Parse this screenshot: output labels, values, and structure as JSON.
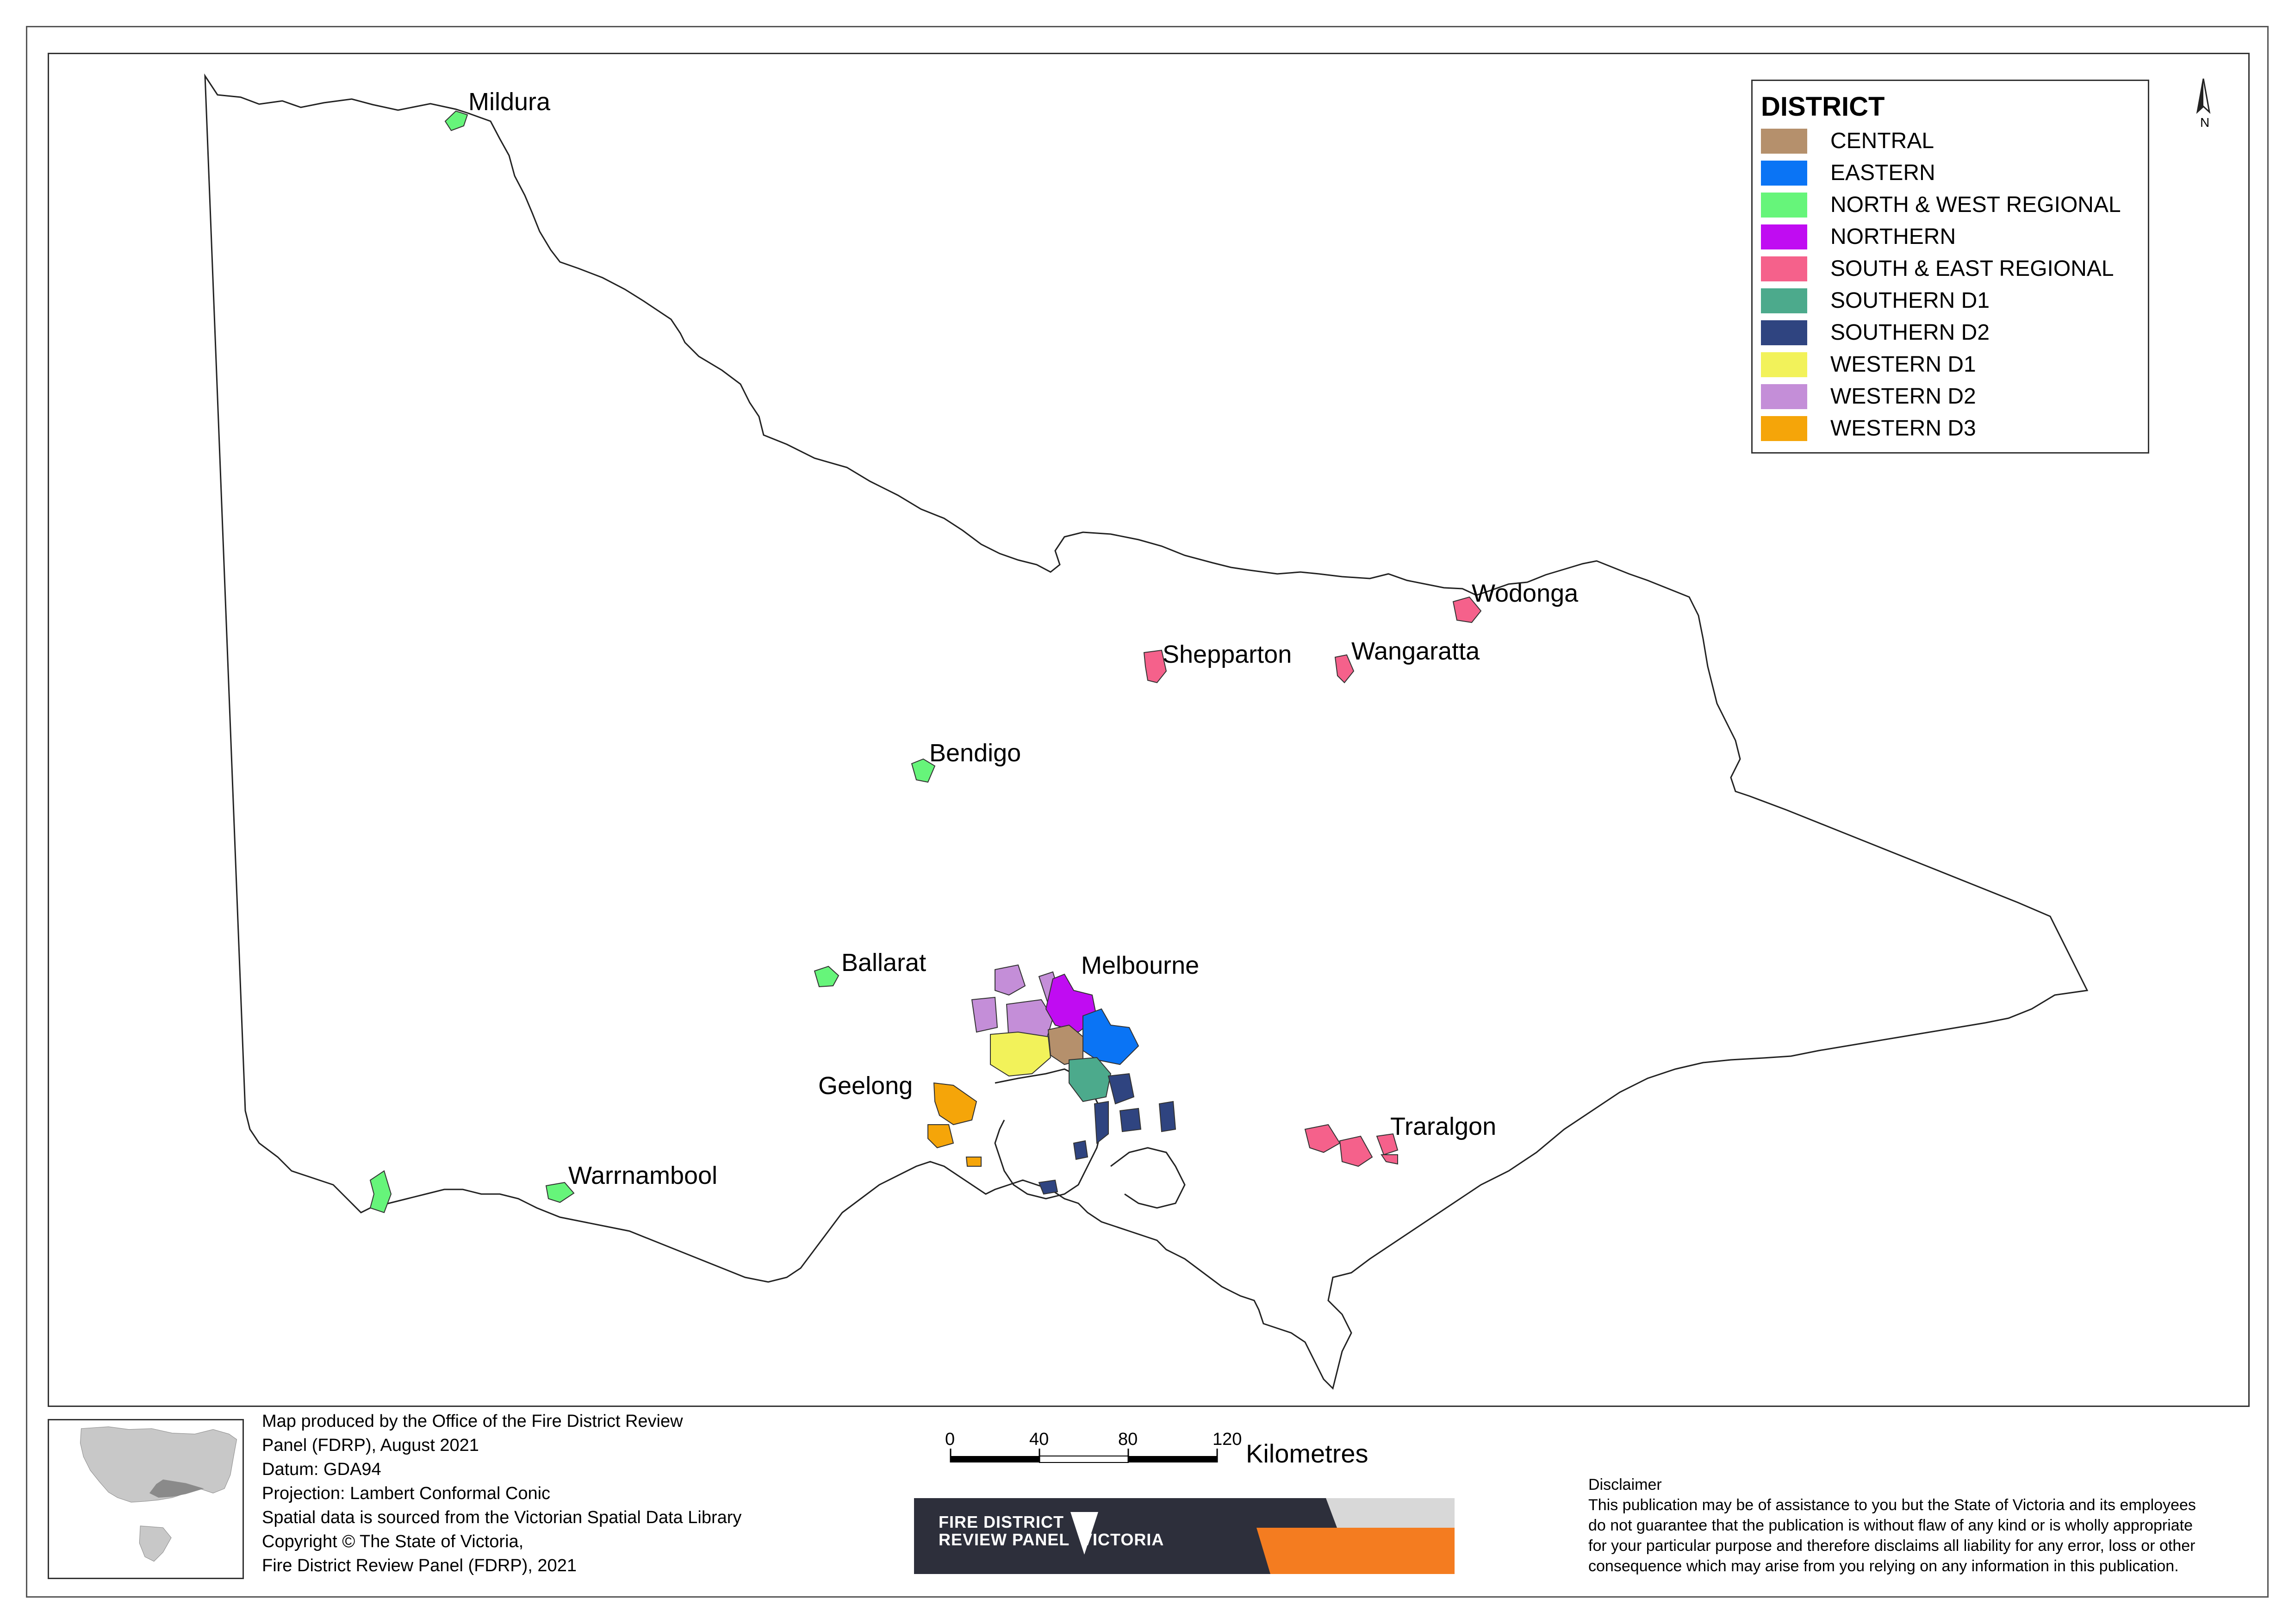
{
  "legend": {
    "title": "DISTRICT",
    "items": [
      {
        "label": "CENTRAL",
        "color": "#b5906c"
      },
      {
        "label": "EASTERN",
        "color": "#0a74f5"
      },
      {
        "label": "NORTH & WEST REGIONAL",
        "color": "#66f57a"
      },
      {
        "label": "NORTHERN",
        "color": "#c00cf2"
      },
      {
        "label": "SOUTH & EAST REGIONAL",
        "color": "#f5618b"
      },
      {
        "label": "SOUTHERN D1",
        "color": "#4caa8c"
      },
      {
        "label": "SOUTHERN D2",
        "color": "#2f4480"
      },
      {
        "label": "WESTERN D1",
        "color": "#f2f25a"
      },
      {
        "label": "WESTERN D2",
        "color": "#c48ed8"
      },
      {
        "label": "WESTERN D3",
        "color": "#f5a509"
      }
    ]
  },
  "places": {
    "mildura": "Mildura",
    "wodonga": "Wodonga",
    "shepparton": "Shepparton",
    "wangaratta": "Wangaratta",
    "bendigo": "Bendigo",
    "ballarat": "Ballarat",
    "melbourne": "Melbourne",
    "geelong": "Geelong",
    "traralgon": "Traralgon",
    "warrnambool": "Warrnambool"
  },
  "north_arrow": {
    "label": "N"
  },
  "info": {
    "lines": [
      "Map produced by the Office of the Fire District Review",
      "Panel (FDRP), August 2021",
      "Datum: GDA94",
      "Projection: Lambert Conformal Conic",
      "Spatial data is sourced from the Victorian Spatial Data Library",
      "Copyright © The State of Victoria,",
      "Fire District Review Panel (FDRP), 2021"
    ]
  },
  "scale": {
    "ticks": [
      "0",
      "40",
      "80",
      "120"
    ],
    "unit": "Kilometres"
  },
  "logo": {
    "line1": "FIRE DISTRICT",
    "line2": "REVIEW PANEL",
    "brand": "VICTORIA"
  },
  "disclaimer": {
    "title": "Disclaimer",
    "lines": [
      "This publication may be of assistance to you but the State of Victoria and its employees",
      "do not guarantee that the publication is without flaw of any kind or is wholly appropriate",
      "for your particular purpose and therefore disclaims all liability for any error, loss or other",
      "consequence which may arise from you relying on any information in this publication."
    ]
  }
}
